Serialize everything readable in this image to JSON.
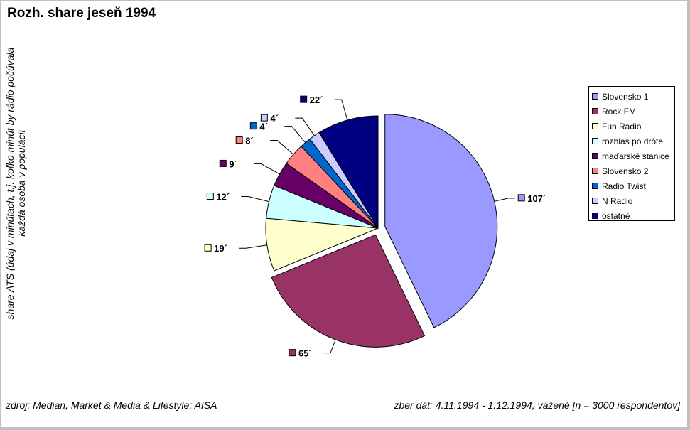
{
  "chart_data": {
    "type": "pie",
    "title": "Rozh. share jeseň 1994",
    "ylabel": "share ATS (údaj v minútach, t.j. koľko minút by rádio počúvala každá osoba v populácii",
    "categories": [
      "Slovensko 1",
      "Rock FM",
      "Fun Radio",
      "rozhlas po drôte",
      "maďarské stanice",
      "Slovensko 2",
      "Radio Twist",
      "N Radio",
      "ostatné"
    ],
    "values": [
      107,
      65,
      19,
      12,
      9,
      8,
      4,
      4,
      22
    ],
    "data_labels": [
      "107´",
      "65´",
      "19´",
      "12´",
      "9´",
      "8´",
      "4´",
      "4´",
      "22´"
    ],
    "colors": [
      "#9999ff",
      "#993366",
      "#ffffcc",
      "#ccffff",
      "#660066",
      "#ff8080",
      "#0066cc",
      "#ccccff",
      "#000080"
    ],
    "exploded": [
      "Slovensko 1",
      "Rock FM"
    ],
    "legend_position": "right"
  },
  "footer": {
    "source": "zdroj: Median, Market & Media & Lifestyle; AISA",
    "collection": "zber dát: 4.11.1994 - 1.12.1994; vážené [n = 3000 respondentov]"
  }
}
